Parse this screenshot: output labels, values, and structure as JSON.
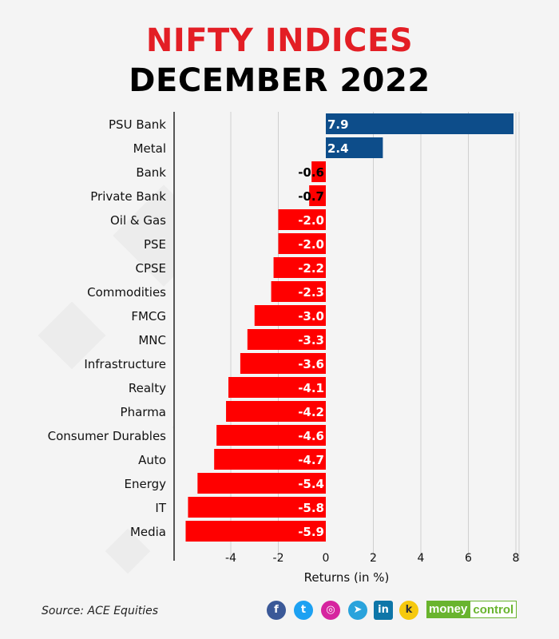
{
  "title_line1": "NIFTY INDICES",
  "title_line2": "DECEMBER 2022",
  "source": "Source: ACE Equities",
  "logo": {
    "part1": "money",
    "part2": "control"
  },
  "colors": {
    "title_red": "#e31e25",
    "negative": "#ff0000",
    "positive": "#0d4d8a"
  },
  "chart_data": {
    "type": "bar",
    "orientation": "horizontal",
    "categories": [
      "PSU Bank",
      "Metal",
      "Bank",
      "Private Bank",
      "Oil & Gas",
      "PSE",
      "CPSE",
      "Commodities",
      "FMCG",
      "MNC",
      "Infrastructure",
      "Realty",
      "Pharma",
      "Consumer Durables",
      "Auto",
      "Energy",
      "IT",
      "Media"
    ],
    "values": [
      7.9,
      2.4,
      -0.6,
      -0.7,
      -2.0,
      -2.0,
      -2.2,
      -2.3,
      -3.0,
      -3.3,
      -3.6,
      -4.1,
      -4.2,
      -4.6,
      -4.7,
      -5.4,
      -5.8,
      -5.9
    ],
    "value_labels": [
      "7.9",
      "2.4",
      "-0.6",
      "-0.7",
      "-2.0",
      "-2.0",
      "-2.2",
      "-2.3",
      "-3.0",
      "-3.3",
      "-3.6",
      "-4.1",
      "-4.2",
      "-4.6",
      "-4.7",
      "-5.4",
      "-5.8",
      "-5.9"
    ],
    "xlabel": "Returns (in %)",
    "xlim": [
      -6.2,
      8.2
    ],
    "xticks": [
      -4,
      -2,
      0,
      2,
      4,
      6,
      8
    ],
    "xtick_labels": [
      "-4",
      "-2",
      "0",
      "2",
      "4",
      "6",
      "8"
    ],
    "grid": true
  }
}
